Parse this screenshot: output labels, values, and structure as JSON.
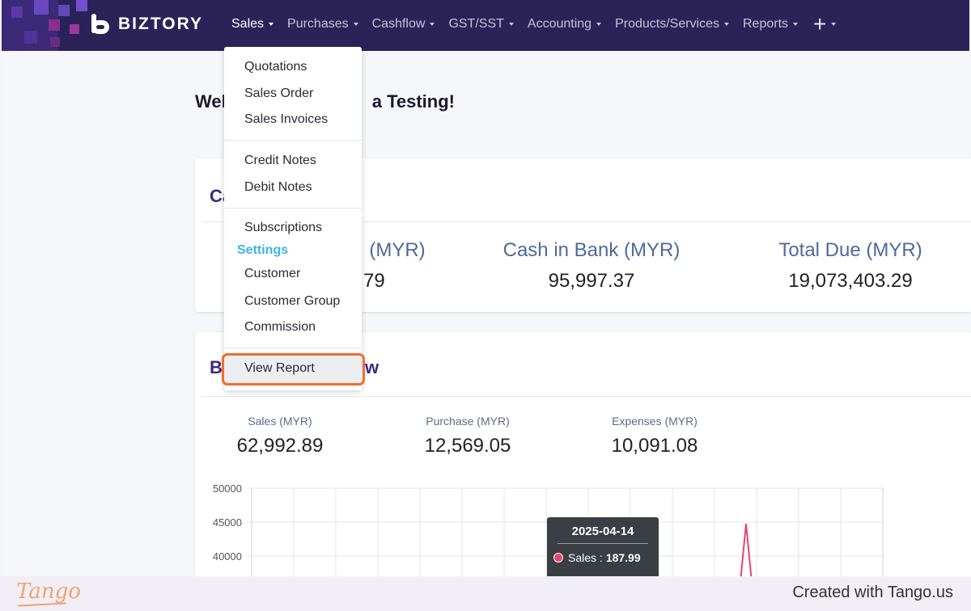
{
  "app": {
    "brand": "BIZTORY"
  },
  "nav": {
    "items": [
      {
        "label": "Sales"
      },
      {
        "label": "Purchases"
      },
      {
        "label": "Cashflow"
      },
      {
        "label": "GST/SST"
      },
      {
        "label": "Accounting"
      },
      {
        "label": "Products/Services"
      },
      {
        "label": "Reports"
      }
    ],
    "plus_icon": "+"
  },
  "main": {
    "welcome_left": "Wel",
    "welcome_right": "a Testing!",
    "card1": {
      "title": "Ca",
      "stats": [
        {
          "label": "(MYR)",
          "value": "79"
        },
        {
          "label": "Cash in Bank (MYR)",
          "value": "95,997.37"
        },
        {
          "label": "Total Due (MYR)",
          "value": "19,073,403.29"
        }
      ]
    },
    "card2": {
      "title_left": "B",
      "title_right": "w",
      "stats": [
        {
          "label": "Sales (MYR)",
          "value": "62,992.89"
        },
        {
          "label": "Purchase (MYR)",
          "value": "12,569.05"
        },
        {
          "label": "Expenses (MYR)",
          "value": "10,091.08"
        }
      ]
    }
  },
  "dropdown": {
    "group1": [
      "Quotations",
      "Sales Order",
      "Sales Invoices"
    ],
    "group2": [
      "Credit Notes",
      "Debit Notes"
    ],
    "group3": [
      "Subscriptions"
    ],
    "settings_heading": "Settings",
    "group4": [
      "Customer",
      "Customer Group",
      "Commission"
    ],
    "view_report": "View Report"
  },
  "chart_data": {
    "type": "line",
    "y_ticks": [
      "50000",
      "45000",
      "40000"
    ],
    "tooltip": {
      "date": "2025-04-14",
      "series_label": "Sales :",
      "series_value": "187.99"
    },
    "colors": {
      "sales": "#e6466e"
    }
  },
  "footer": {
    "logo": "Tango",
    "created": "Created with Tango.us"
  }
}
